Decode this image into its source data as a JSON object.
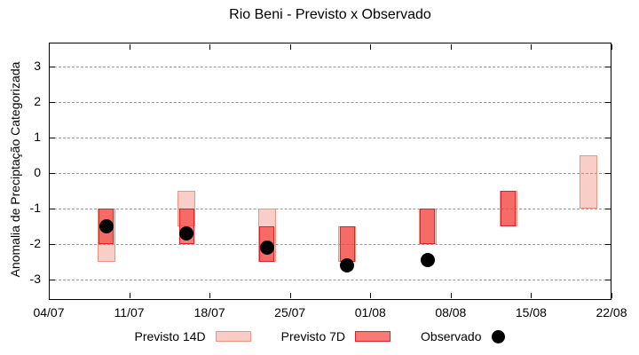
{
  "title": "Rio Beni - Previsto x Observado",
  "y_axis": {
    "label": "Anomalia de Preciptação Categorizada",
    "ticks": [
      3,
      2,
      1,
      0,
      -1,
      -2,
      -3
    ]
  },
  "x_axis": {
    "tick_labels": [
      "04/07",
      "11/07",
      "18/07",
      "25/07",
      "01/08",
      "08/08",
      "15/08",
      "22/08"
    ]
  },
  "legend": {
    "items": [
      {
        "label": "Previsto 14D",
        "type": "p14"
      },
      {
        "label": "Previsto 7D",
        "type": "p7"
      },
      {
        "label": "Observado",
        "type": "obs"
      }
    ]
  },
  "colors": {
    "p14_fill": "rgba(239,114,96,0.35)",
    "p14_border": "#f0927e",
    "p14_swatch_fill": "#f9cdc5",
    "p7_fill": "rgba(244,60,55,0.68)",
    "p7_border": "#e2202c",
    "p7_swatch_fill": "#f77a77",
    "observed": "#000000",
    "grid": "#999999"
  },
  "chart_data": {
    "type": "range-bar + scatter",
    "title": "Rio Beni - Previsto x Observado",
    "ylabel": "Anomalia de Preciptação Categorizada",
    "ylim": [
      -3.6,
      3.7
    ],
    "grid": "horizontal dashed",
    "legend_position": "bottom",
    "x_tick_labels": [
      "04/07",
      "11/07",
      "18/07",
      "25/07",
      "01/08",
      "08/08",
      "15/08",
      "22/08"
    ],
    "x_axis_span_days": 49,
    "series_names": [
      "Previsto 14D",
      "Previsto 7D",
      "Observado"
    ],
    "groups": [
      {
        "date": "09/07",
        "day": 5,
        "previsto_14d": [
          -1.0,
          -2.5
        ],
        "previsto_7d": [
          -1.0,
          -2.0
        ],
        "observado": -1.5
      },
      {
        "date": "16/07",
        "day": 12,
        "previsto_14d": [
          -0.5,
          -1.5
        ],
        "previsto_7d": [
          -1.0,
          -2.0
        ],
        "observado": -1.7
      },
      {
        "date": "23/07",
        "day": 19,
        "previsto_14d": [
          -1.0,
          -2.5
        ],
        "previsto_7d": [
          -1.5,
          -2.5
        ],
        "observado": -2.1
      },
      {
        "date": "30/07",
        "day": 26,
        "previsto_14d": [
          -1.5,
          -2.5
        ],
        "previsto_7d": [
          -1.5,
          -2.5
        ],
        "observado": -2.6
      },
      {
        "date": "06/08",
        "day": 33,
        "previsto_14d": [
          -1.0,
          -2.0
        ],
        "previsto_7d": [
          -1.0,
          -2.0
        ],
        "observado": -2.45
      },
      {
        "date": "13/08",
        "day": 40,
        "previsto_14d": [
          -0.5,
          -1.5
        ],
        "previsto_7d": [
          -0.5,
          -1.5
        ],
        "observado": null
      },
      {
        "date": "20/08",
        "day": 47,
        "previsto_14d": [
          0.5,
          -1.0
        ],
        "previsto_7d": null,
        "observado": null
      }
    ]
  }
}
